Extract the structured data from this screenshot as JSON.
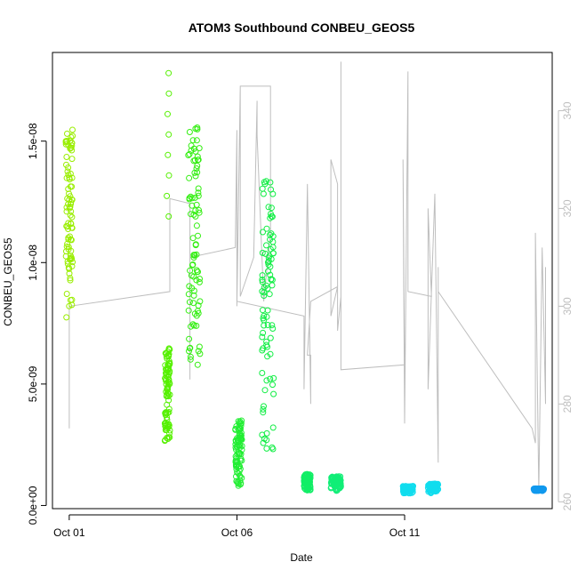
{
  "chart_data": {
    "type": "scatter",
    "title": "ATOM3 Southbound CONBEU_GEOS5",
    "xlabel": "Date",
    "ylabel": "CONBEU_GEOS5",
    "x_ticks": [
      {
        "label": "Oct 01",
        "day": 1.0
      },
      {
        "label": "Oct 06",
        "day": 6.0
      },
      {
        "label": "Oct 11",
        "day": 11.0
      }
    ],
    "y_ticks": [
      {
        "label": "0.0e+00",
        "value": 0
      },
      {
        "label": "5.0e-09",
        "value": 5e-09
      },
      {
        "label": "1.0e-08",
        "value": 1e-08
      },
      {
        "label": "1.5e-08",
        "value": 1.5e-08
      }
    ],
    "y2_ticks": [
      {
        "label": "260",
        "value": 260
      },
      {
        "label": "280",
        "value": 280
      },
      {
        "label": "300",
        "value": 300
      },
      {
        "label": "320",
        "value": 320
      },
      {
        "label": "340",
        "value": 340
      }
    ],
    "xlim_days": [
      0.5,
      15.4
    ],
    "ylim": [
      -1.3e-10,
      1.865e-08
    ],
    "y2lim": [
      258.6,
      351.9
    ],
    "marker": "open-circle",
    "secondary_axis_color": "#bebebe",
    "series": [
      {
        "x": [
          0.9,
          1.1
        ],
        "y": [
          7.7e-09,
          1.55e-08
        ],
        "color": "#99ee00"
      },
      {
        "x": [
          3.85,
          4.0
        ],
        "y": [
          2.6e-09,
          6.5e-09
        ],
        "color": "#55f000"
      },
      {
        "x": [
          3.9,
          3.98
        ],
        "y": [
          1.19e-08,
          1.78e-08
        ],
        "color": "#55f000",
        "sparse": true
      },
      {
        "x": [
          4.55,
          4.9
        ],
        "y": [
          5.5e-09,
          1.58e-08
        ],
        "color": "#33ee11"
      },
      {
        "x": [
          5.95,
          6.15
        ],
        "y": [
          8e-10,
          3.5e-09
        ],
        "color": "#22ee33"
      },
      {
        "x": [
          6.75,
          7.1
        ],
        "y": [
          2e-09,
          1.36e-08
        ],
        "color": "#11ee44"
      },
      {
        "x": [
          8.0,
          8.2
        ],
        "y": [
          6e-10,
          1.3e-09
        ],
        "color": "#11ee66"
      },
      {
        "x": [
          8.8,
          9.1
        ],
        "y": [
          6e-10,
          1.2e-09
        ],
        "color": "#11ee77"
      },
      {
        "x": [
          10.95,
          11.25
        ],
        "y": [
          5e-10,
          8e-10
        ],
        "color": "#11ddee"
      },
      {
        "x": [
          11.7,
          12.0
        ],
        "y": [
          5e-10,
          9e-10
        ],
        "color": "#11ddee"
      },
      {
        "x": [
          14.85,
          15.15
        ],
        "y": [
          6e-10,
          7e-10
        ],
        "color": "#1199ee"
      }
    ],
    "secondary_line": {
      "name": "",
      "points": [
        [
          1.0,
          275
        ],
        [
          1.0,
          298
        ],
        [
          1.0,
          300
        ],
        [
          4.0,
          303
        ],
        [
          4.0,
          322
        ],
        [
          4.6,
          321
        ],
        [
          4.6,
          285
        ],
        [
          4.6,
          310
        ],
        [
          5.95,
          312
        ],
        [
          6.0,
          336
        ],
        [
          6.0,
          300
        ],
        [
          6.1,
          345
        ],
        [
          6.1,
          302
        ],
        [
          6.5,
          310
        ],
        [
          6.6,
          342
        ],
        [
          6.6,
          335
        ],
        [
          6.8,
          301
        ],
        [
          7.0,
          315
        ],
        [
          7.0,
          340
        ],
        [
          7.0,
          345
        ],
        [
          6.1,
          345
        ],
        [
          6.0,
          301
        ],
        [
          8.0,
          298
        ],
        [
          8.0,
          283
        ],
        [
          8.1,
          325
        ],
        [
          8.2,
          280
        ],
        [
          8.2,
          290
        ],
        [
          8.1,
          290
        ],
        [
          8.2,
          301
        ],
        [
          9.0,
          304
        ],
        [
          8.8,
          298
        ],
        [
          8.8,
          330
        ],
        [
          9.0,
          325
        ],
        [
          9.0,
          295
        ],
        [
          9.1,
          302
        ],
        [
          9.1,
          350
        ],
        [
          9.1,
          287
        ],
        [
          11.0,
          288
        ],
        [
          10.95,
          330
        ],
        [
          11.0,
          276
        ],
        [
          11.1,
          348
        ],
        [
          11.1,
          303
        ],
        [
          11.8,
          302
        ],
        [
          11.7,
          320
        ],
        [
          11.7,
          283
        ],
        [
          11.9,
          323
        ],
        [
          12.0,
          268
        ],
        [
          12.0,
          308
        ],
        [
          12.0,
          303
        ],
        [
          14.8,
          275
        ],
        [
          14.9,
          272
        ],
        [
          14.9,
          315
        ],
        [
          15.0,
          262
        ],
        [
          15.1,
          312
        ],
        [
          15.2,
          280
        ],
        [
          15.2,
          308
        ]
      ]
    }
  }
}
